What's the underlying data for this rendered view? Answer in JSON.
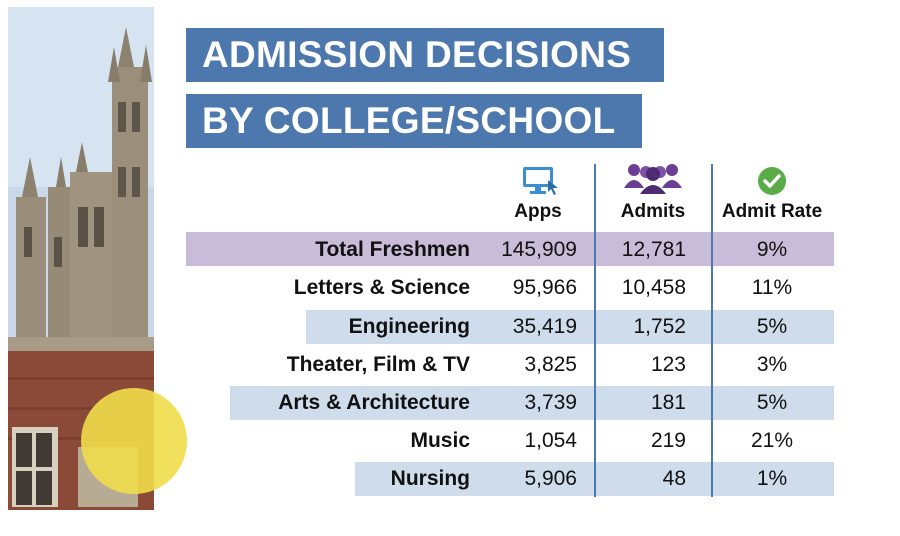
{
  "title": {
    "line1": "ADMISSION DECISIONS",
    "line2": "BY COLLEGE/SCHOOL"
  },
  "columns": {
    "apps": {
      "label": "Apps",
      "icon": "computer-icon"
    },
    "admits": {
      "label": "Admits",
      "icon": "people-icon"
    },
    "rate": {
      "label": "Admit Rate",
      "icon": "checkmark-icon"
    }
  },
  "colors": {
    "title_bg": "#4d78ad",
    "highlight_row": "#c9bcd9",
    "alt_row": "#cfdcec",
    "accent_yellow": "#f0dd4a",
    "check_green": "#5aac48",
    "people_purple": "#6a3e95",
    "computer_blue": "#3b8fd0"
  },
  "rows": [
    {
      "name": "Total Freshmen",
      "apps": "145,909",
      "admits": "12,781",
      "rate": "9%"
    },
    {
      "name": "Letters & Science",
      "apps": "95,966",
      "admits": "10,458",
      "rate": "11%"
    },
    {
      "name": "Engineering",
      "apps": "35,419",
      "admits": "1,752",
      "rate": "5%"
    },
    {
      "name": "Theater, Film & TV",
      "apps": "3,825",
      "admits": "123",
      "rate": "3%"
    },
    {
      "name": "Arts & Architecture",
      "apps": "3,739",
      "admits": "181",
      "rate": "5%"
    },
    {
      "name": "Music",
      "apps": "1,054",
      "admits": "219",
      "rate": "21%"
    },
    {
      "name": "Nursing",
      "apps": "5,906",
      "admits": "48",
      "rate": "1%"
    }
  ]
}
